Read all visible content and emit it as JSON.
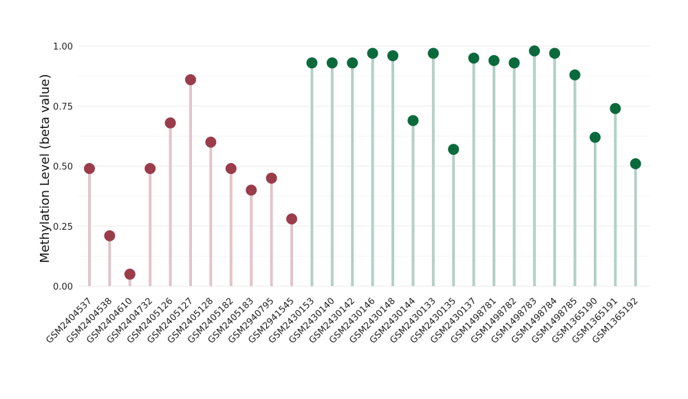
{
  "chart_data": {
    "type": "lollipop",
    "title": "",
    "xlabel": "",
    "ylabel": "Methylation Level (beta value)",
    "ylim": [
      0,
      1.0
    ],
    "y_ticks": [
      "0.00",
      "0.25",
      "0.50",
      "0.75",
      "1.00"
    ],
    "y_tick_values": [
      0,
      0.25,
      0.5,
      0.75,
      1.0
    ],
    "grid": true,
    "legend": "none",
    "categories": [
      "GSM2404537",
      "GSM2404538",
      "GSM2404610",
      "GSM2404732",
      "GSM2405126",
      "GSM2405127",
      "GSM2405128",
      "GSM2405182",
      "GSM2405183",
      "GSM2940795",
      "GSM2941545",
      "GSM2430153",
      "GSM2430140",
      "GSM2430142",
      "GSM2430146",
      "GSM2430148",
      "GSM2430144",
      "GSM2430133",
      "GSM2430135",
      "GSM2430137",
      "GSM1498781",
      "GSM1498782",
      "GSM1498783",
      "GSM1498784",
      "GSM1498785",
      "GSM1365190",
      "GSM1365191",
      "GSM1365192"
    ],
    "values": [
      0.49,
      0.21,
      0.05,
      0.49,
      0.68,
      0.86,
      0.6,
      0.49,
      0.4,
      0.45,
      0.28,
      0.93,
      0.93,
      0.93,
      0.97,
      0.96,
      0.69,
      0.97,
      0.57,
      0.95,
      0.94,
      0.93,
      0.98,
      0.97,
      0.88,
      0.62,
      0.74,
      0.51
    ],
    "groups": [
      0,
      0,
      0,
      0,
      0,
      0,
      0,
      0,
      0,
      0,
      0,
      1,
      1,
      1,
      1,
      1,
      1,
      1,
      1,
      1,
      1,
      1,
      1,
      1,
      1,
      1,
      1,
      1
    ],
    "colors": {
      "group0_point": "#9a3c4a",
      "group0_stem": "#e2c4ca",
      "group1_point": "#0b6a3c",
      "group1_stem": "#b2d0c6"
    }
  }
}
